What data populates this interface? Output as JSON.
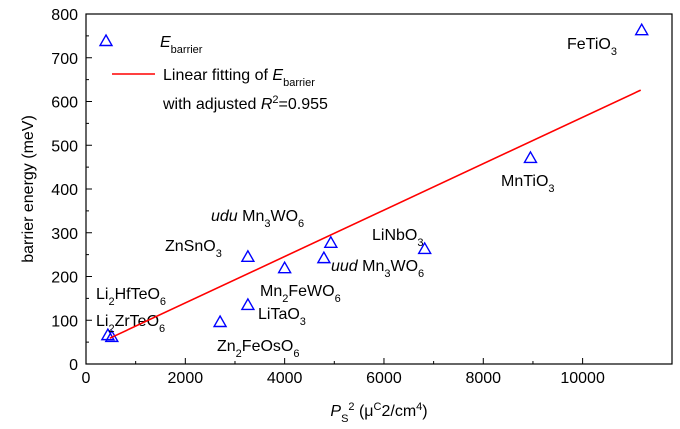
{
  "chart_data": {
    "type": "scatter",
    "x_label": "PS2 (μC2/cm4)",
    "y_label": "barrier energy (meV)",
    "xlim": [
      0,
      11800
    ],
    "xticks": [
      0,
      2000,
      4000,
      6000,
      8000,
      10000
    ],
    "ylim": [
      0,
      800
    ],
    "yticks": [
      0,
      100,
      200,
      300,
      400,
      500,
      600,
      700,
      800
    ],
    "legend": "upper left",
    "series": [
      {
        "name": "Ebarrier",
        "type": "scatter",
        "color": "#0000ff",
        "x": [
          440,
          520,
          2700,
          3260,
          3260,
          4000,
          4790,
          4930,
          6820,
          8950,
          11190
        ],
        "values": [
          66,
          62,
          96,
          135,
          245,
          219,
          242,
          277,
          263,
          471,
          763
        ],
        "point_labels": [
          "Li2HfTeO6",
          "Li2ZrTeO6",
          "Zn2FeOsO6",
          "LiTaO3",
          "ZnSnO3",
          "Mn2FeWO6",
          "uud Mn3WO6",
          "udu Mn3WO6",
          "LiNbO3",
          "MnTiO3",
          "FeTiO3"
        ]
      },
      {
        "name": "Linear fitting of Ebarrier",
        "type": "line",
        "color": "#ff0000",
        "x": [
          480,
          11170
        ],
        "values": [
          59,
          626
        ]
      }
    ],
    "annotation": "with adjusted R2=0.955"
  }
}
